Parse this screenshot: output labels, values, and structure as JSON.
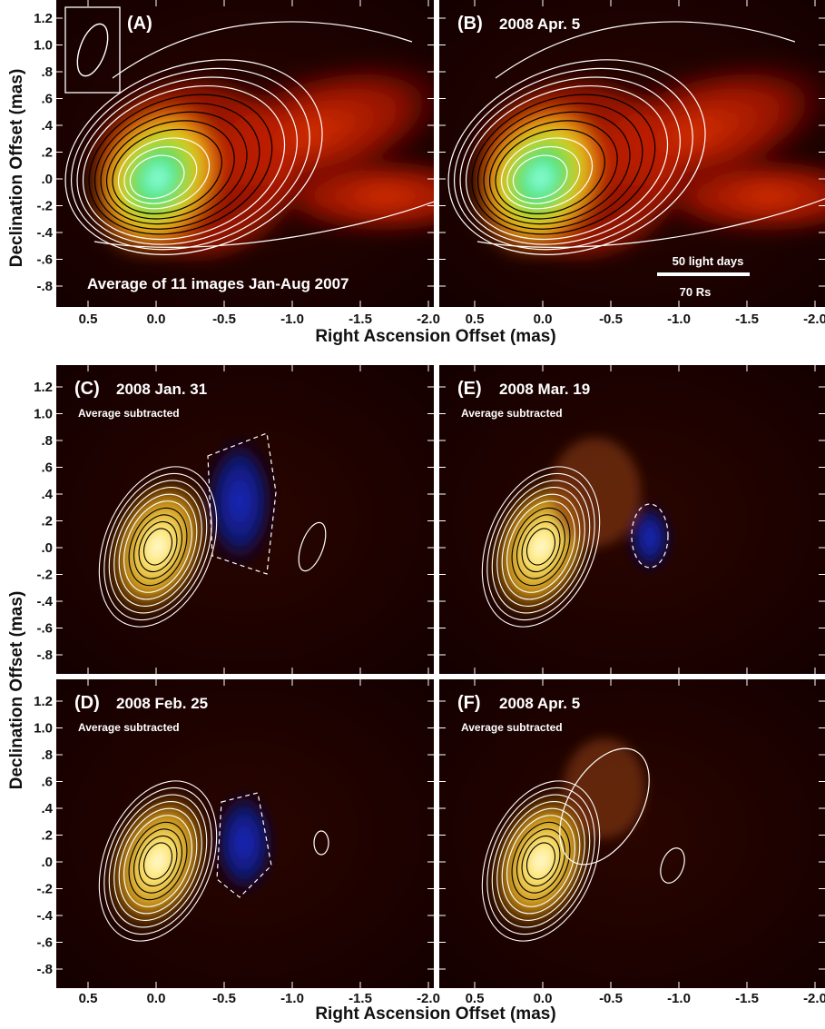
{
  "figure": {
    "axis_titles": {
      "x_top": "Right Ascension Offset (mas)",
      "x_bottom": "Right Ascension Offset (mas)",
      "y_top": "Declination Offset (mas)",
      "y_bottom": "Declination Offset (mas)"
    },
    "x_ticks": [
      "0.5",
      "0.0",
      "-0.5",
      "-1.0",
      "-1.5",
      "-2.0"
    ],
    "y_ticks": [
      "1.2",
      "1.0",
      ".8",
      ".6",
      ".4",
      ".2",
      ".0",
      "-.2",
      "-.4",
      "-.6",
      "-.8"
    ],
    "panels": [
      {
        "id": "A",
        "label": "(A)",
        "date": "",
        "subtitle": "",
        "caption": "Average of 11 images  Jan-Aug 2007",
        "kind": "average"
      },
      {
        "id": "B",
        "label": "(B)",
        "date": "2008 Apr. 5",
        "subtitle": "",
        "caption": "",
        "kind": "image",
        "scalebar": {
          "top_text": "50 light days",
          "bottom_text": "70 Rs"
        }
      },
      {
        "id": "C",
        "label": "(C)",
        "date": "2008 Jan. 31",
        "subtitle": "Average subtracted",
        "caption": "",
        "kind": "diff"
      },
      {
        "id": "E",
        "label": "(E)",
        "date": "2008 Mar. 19",
        "subtitle": "Average subtracted",
        "caption": "",
        "kind": "diff"
      },
      {
        "id": "D",
        "label": "(D)",
        "date": "2008 Feb. 25",
        "subtitle": "Average subtracted",
        "caption": "",
        "kind": "diff"
      },
      {
        "id": "F",
        "label": "(F)",
        "date": "2008 Apr. 5",
        "subtitle": "Average subtracted",
        "caption": "",
        "kind": "diff"
      }
    ],
    "colors": {
      "background_dark": "#1a0000",
      "jet_red": "#b01000",
      "core_cyan": "#60ffd0",
      "excess_yellow": "#e8c020",
      "deficit_blue": "#1020a0",
      "contour_white": "#ffffff",
      "contour_black": "#000000"
    }
  }
}
